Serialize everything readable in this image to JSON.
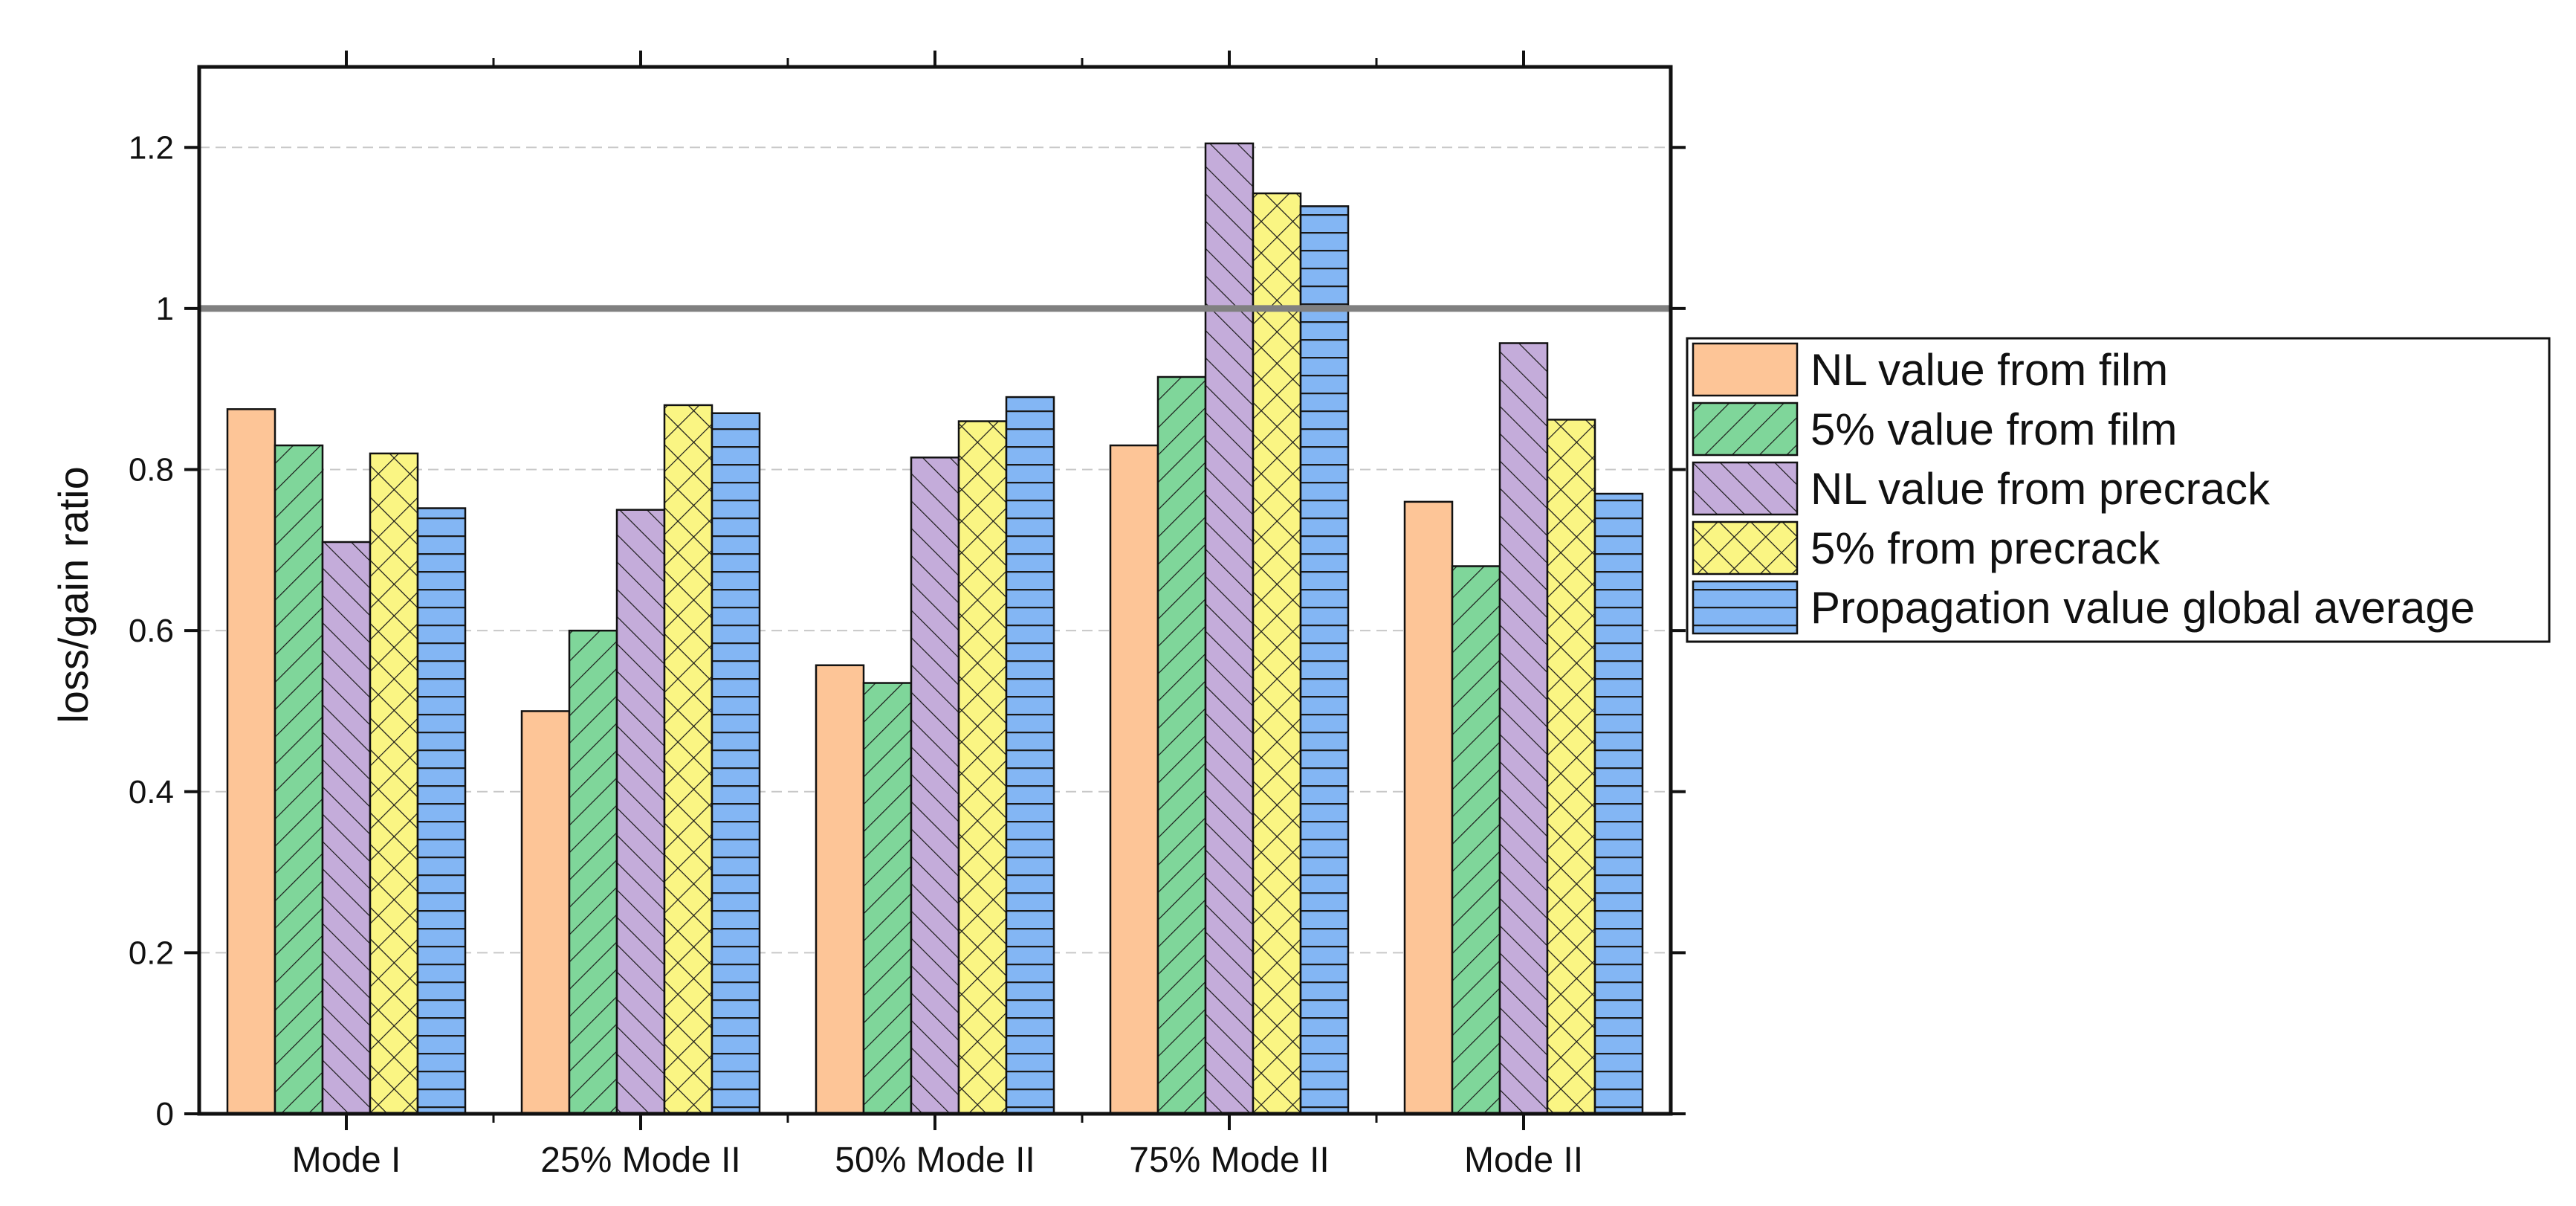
{
  "chart_data": {
    "type": "bar",
    "title": "",
    "xlabel": "",
    "ylabel": "loss/gain ratio",
    "ylim": [
      0,
      1.3
    ],
    "yticks": [
      0,
      0.2,
      0.4,
      0.6,
      0.8,
      1,
      1.2
    ],
    "ytick_labels": [
      "0",
      "0.2",
      "0.4",
      "0.6",
      "0.8",
      "1",
      "1.2"
    ],
    "grid": "horizontal dashed",
    "reference_line": {
      "y": 1.0,
      "color": "#808080"
    },
    "legend_position": "right",
    "categories": [
      "Mode I",
      "25% Mode II",
      "50% Mode II",
      "75% Mode II",
      "Mode II"
    ],
    "series": [
      {
        "name": "NL value from film",
        "values": [
          0.875,
          0.5,
          0.557,
          0.83,
          0.76
        ],
        "color": "#FDC597",
        "pattern": "solid"
      },
      {
        "name": "5% value from film",
        "values": [
          0.83,
          0.6,
          0.535,
          0.915,
          0.68
        ],
        "color": "#7FD69A",
        "pattern": "forward-diagonal"
      },
      {
        "name": "NL value from precrack",
        "values": [
          0.71,
          0.75,
          0.815,
          1.205,
          0.957
        ],
        "color": "#C4ACDA",
        "pattern": "back-diagonal"
      },
      {
        "name": "5% from precrack",
        "values": [
          0.82,
          0.88,
          0.86,
          1.143,
          0.862
        ],
        "color": "#FAF583",
        "pattern": "cross-hatch"
      },
      {
        "name": "Propagation value global average",
        "values": [
          0.752,
          0.87,
          0.89,
          1.127,
          0.77
        ],
        "color": "#83B6F4",
        "pattern": "horizontal"
      }
    ]
  }
}
